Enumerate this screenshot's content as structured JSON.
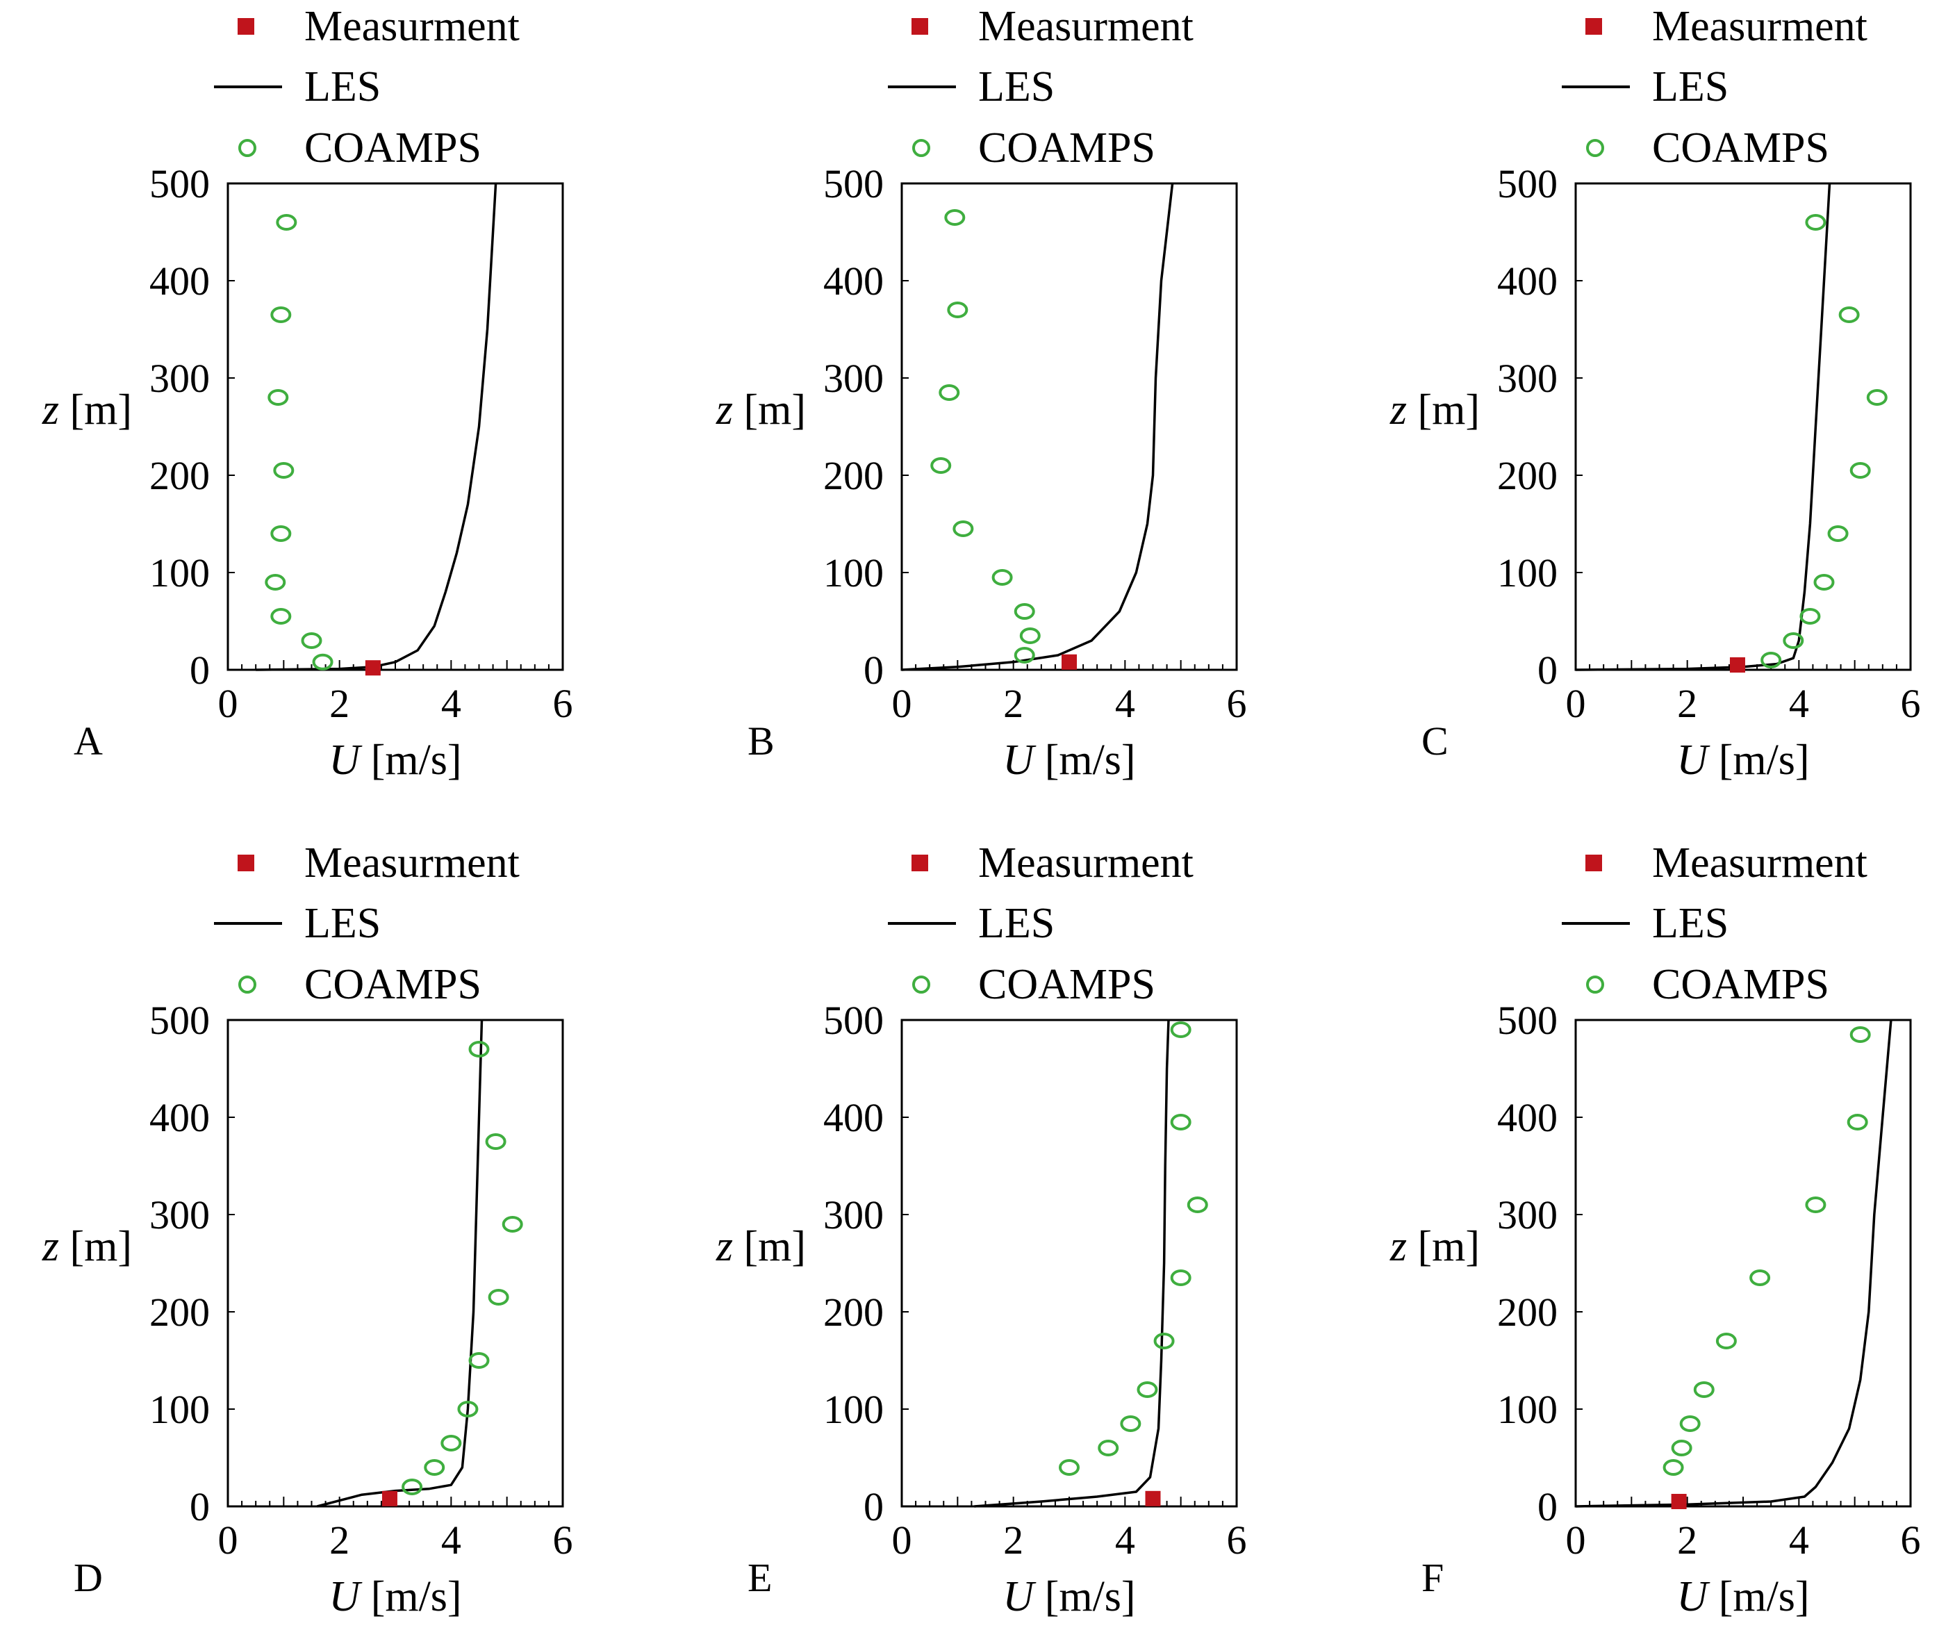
{
  "legend_labels": {
    "measurement": "Measurment",
    "les": "LES",
    "coamps": "COAMPS"
  },
  "colors": {
    "measurement": "#c0141c",
    "les": "#000000",
    "coamps": "#3fae3f",
    "frame": "#000000"
  },
  "chart_data": [
    {
      "panel": "A",
      "type": "line",
      "xlabel_var": "U",
      "xlabel_unit": " [m/s]",
      "ylabel_var": "z",
      "ylabel_unit": " [m]",
      "xlim": [
        0,
        6
      ],
      "ylim": [
        0,
        500
      ],
      "xticks": [
        "0",
        "2",
        "4",
        "6"
      ],
      "yticks": [
        "0",
        "100",
        "200",
        "300",
        "400",
        "500"
      ],
      "measurement": [
        [
          2.6,
          2
        ]
      ],
      "les": [
        [
          0.5,
          0
        ],
        [
          2.0,
          1
        ],
        [
          2.6,
          3
        ],
        [
          3.0,
          8
        ],
        [
          3.4,
          20
        ],
        [
          3.7,
          45
        ],
        [
          3.9,
          80
        ],
        [
          4.1,
          120
        ],
        [
          4.3,
          170
        ],
        [
          4.5,
          250
        ],
        [
          4.65,
          350
        ],
        [
          4.8,
          500
        ]
      ],
      "coamps": [
        [
          1.05,
          460
        ],
        [
          0.95,
          365
        ],
        [
          0.9,
          280
        ],
        [
          1.0,
          205
        ],
        [
          0.95,
          140
        ],
        [
          0.85,
          90
        ],
        [
          0.95,
          55
        ],
        [
          1.5,
          30
        ],
        [
          1.7,
          8
        ]
      ]
    },
    {
      "panel": "B",
      "type": "line",
      "xlabel_var": "U",
      "xlabel_unit": " [m/s]",
      "ylabel_var": "z",
      "ylabel_unit": " [m]",
      "xlim": [
        0,
        6
      ],
      "ylim": [
        0,
        500
      ],
      "xticks": [
        "0",
        "2",
        "4",
        "6"
      ],
      "yticks": [
        "0",
        "100",
        "200",
        "300",
        "400",
        "500"
      ],
      "measurement": [
        [
          3.0,
          8
        ]
      ],
      "les": [
        [
          0.0,
          0
        ],
        [
          1.0,
          3
        ],
        [
          2.0,
          8
        ],
        [
          2.8,
          15
        ],
        [
          3.4,
          30
        ],
        [
          3.9,
          60
        ],
        [
          4.2,
          100
        ],
        [
          4.4,
          150
        ],
        [
          4.5,
          200
        ],
        [
          4.55,
          300
        ],
        [
          4.65,
          400
        ],
        [
          4.85,
          500
        ]
      ],
      "coamps": [
        [
          0.95,
          465
        ],
        [
          1.0,
          370
        ],
        [
          0.85,
          285
        ],
        [
          0.7,
          210
        ],
        [
          1.1,
          145
        ],
        [
          1.8,
          95
        ],
        [
          2.2,
          60
        ],
        [
          2.3,
          35
        ],
        [
          2.2,
          15
        ]
      ]
    },
    {
      "panel": "C",
      "type": "line",
      "xlabel_var": "U",
      "xlabel_unit": " [m/s]",
      "ylabel_var": "z",
      "ylabel_unit": " [m]",
      "xlim": [
        0,
        6
      ],
      "ylim": [
        0,
        500
      ],
      "xticks": [
        "0",
        "2",
        "4",
        "6"
      ],
      "yticks": [
        "0",
        "100",
        "200",
        "300",
        "400",
        "500"
      ],
      "measurement": [
        [
          2.9,
          5
        ]
      ],
      "les": [
        [
          0.0,
          0
        ],
        [
          2.0,
          1
        ],
        [
          3.0,
          3
        ],
        [
          3.6,
          6
        ],
        [
          3.9,
          12
        ],
        [
          4.0,
          30
        ],
        [
          4.1,
          80
        ],
        [
          4.2,
          150
        ],
        [
          4.3,
          250
        ],
        [
          4.4,
          350
        ],
        [
          4.5,
          450
        ],
        [
          4.55,
          500
        ]
      ],
      "coamps": [
        [
          4.3,
          460
        ],
        [
          4.9,
          365
        ],
        [
          5.4,
          280
        ],
        [
          5.1,
          205
        ],
        [
          4.7,
          140
        ],
        [
          4.45,
          90
        ],
        [
          4.2,
          55
        ],
        [
          3.9,
          30
        ],
        [
          3.5,
          10
        ]
      ]
    },
    {
      "panel": "D",
      "type": "line",
      "xlabel_var": "U",
      "xlabel_unit": " [m/s]",
      "ylabel_var": "z",
      "ylabel_unit": " [m]",
      "xlim": [
        0,
        6
      ],
      "ylim": [
        0,
        500
      ],
      "xticks": [
        "0",
        "2",
        "4",
        "6"
      ],
      "yticks": [
        "0",
        "100",
        "200",
        "300",
        "400",
        "500"
      ],
      "measurement": [
        [
          2.9,
          8
        ]
      ],
      "les": [
        [
          1.6,
          0
        ],
        [
          2.0,
          6
        ],
        [
          2.4,
          12
        ],
        [
          3.0,
          16
        ],
        [
          3.6,
          18
        ],
        [
          4.0,
          22
        ],
        [
          4.2,
          40
        ],
        [
          4.3,
          100
        ],
        [
          4.4,
          200
        ],
        [
          4.45,
          300
        ],
        [
          4.5,
          400
        ],
        [
          4.55,
          500
        ]
      ],
      "coamps": [
        [
          4.5,
          470
        ],
        [
          4.8,
          375
        ],
        [
          5.1,
          290
        ],
        [
          4.85,
          215
        ],
        [
          4.5,
          150
        ],
        [
          4.3,
          100
        ],
        [
          4.0,
          65
        ],
        [
          3.7,
          40
        ],
        [
          3.3,
          20
        ]
      ]
    },
    {
      "panel": "E",
      "type": "line",
      "xlabel_var": "U",
      "xlabel_unit": " [m/s]",
      "ylabel_var": "z",
      "ylabel_unit": " [m]",
      "xlim": [
        0,
        6
      ],
      "ylim": [
        0,
        500
      ],
      "xticks": [
        "0",
        "2",
        "4",
        "6"
      ],
      "yticks": [
        "0",
        "100",
        "200",
        "300",
        "400",
        "500"
      ],
      "measurement": [
        [
          4.5,
          8
        ]
      ],
      "les": [
        [
          1.3,
          0
        ],
        [
          2.5,
          5
        ],
        [
          3.5,
          10
        ],
        [
          4.2,
          15
        ],
        [
          4.45,
          30
        ],
        [
          4.6,
          80
        ],
        [
          4.65,
          150
        ],
        [
          4.7,
          250
        ],
        [
          4.72,
          350
        ],
        [
          4.75,
          450
        ],
        [
          4.78,
          500
        ]
      ],
      "coamps": [
        [
          5.0,
          490
        ],
        [
          5.0,
          395
        ],
        [
          5.3,
          310
        ],
        [
          5.0,
          235
        ],
        [
          4.7,
          170
        ],
        [
          4.4,
          120
        ],
        [
          4.1,
          85
        ],
        [
          3.7,
          60
        ],
        [
          3.0,
          40
        ]
      ]
    },
    {
      "panel": "F",
      "type": "line",
      "xlabel_var": "U",
      "xlabel_unit": " [m/s]",
      "ylabel_var": "z",
      "ylabel_unit": " [m]",
      "xlim": [
        0,
        6
      ],
      "ylim": [
        0,
        500
      ],
      "xticks": [
        "0",
        "2",
        "4",
        "6"
      ],
      "yticks": [
        "0",
        "100",
        "200",
        "300",
        "400",
        "500"
      ],
      "measurement": [
        [
          1.85,
          5
        ]
      ],
      "les": [
        [
          0.0,
          0
        ],
        [
          2.0,
          2
        ],
        [
          3.5,
          5
        ],
        [
          4.1,
          10
        ],
        [
          4.3,
          20
        ],
        [
          4.6,
          45
        ],
        [
          4.9,
          80
        ],
        [
          5.1,
          130
        ],
        [
          5.25,
          200
        ],
        [
          5.35,
          300
        ],
        [
          5.5,
          400
        ],
        [
          5.65,
          500
        ]
      ],
      "coamps": [
        [
          5.1,
          485
        ],
        [
          5.05,
          395
        ],
        [
          4.3,
          310
        ],
        [
          3.3,
          235
        ],
        [
          2.7,
          170
        ],
        [
          2.3,
          120
        ],
        [
          2.05,
          85
        ],
        [
          1.9,
          60
        ],
        [
          1.75,
          40
        ]
      ]
    }
  ]
}
